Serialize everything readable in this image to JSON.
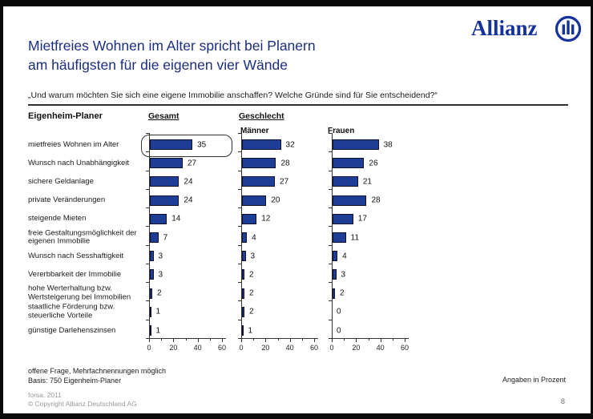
{
  "brand": {
    "logo_text": "Allianz",
    "logo_color": "#16339c"
  },
  "header": {
    "title_line1": "Mietfreies Wohnen im Alter spricht bei Planern",
    "title_line2": "am häufigsten für die eigenen vier Wände",
    "title_color": "#1c2e80",
    "question": "„Und warum möchten Sie sich eine eigene Immobilie anschaffen? Welche Gründe sind für Sie entscheidend?“"
  },
  "chart_data": {
    "type": "bar",
    "orientation": "horizontal",
    "group_label": "Eigenheim-Planer",
    "series_group_header": "Geschlecht",
    "categories": [
      "mietfreies Wohnen im Alter",
      "Wunsch nach Unabhängigkeit",
      "sichere Geldanlage",
      "private Veränderungen",
      "steigende Mieten",
      "freie Gestaltungsmöglichkeit der eigenen Immobilie",
      "Wunsch nach Sesshaftigkeit",
      "Vererbbarkeit der Immobilie",
      "hohe Werterhaltung bzw. Wertsteigerung bei Immobilien",
      "staatliche Förderung bzw. steuerliche Vorteile",
      "günstige Darlehenszinsen"
    ],
    "series": [
      {
        "name": "Gesamt",
        "values": [
          35,
          27,
          24,
          24,
          14,
          7,
          3,
          3,
          2,
          1,
          1
        ]
      },
      {
        "name": "Männer",
        "values": [
          32,
          28,
          27,
          20,
          12,
          4,
          3,
          2,
          2,
          2,
          1
        ]
      },
      {
        "name": "Frauen",
        "values": [
          38,
          26,
          21,
          28,
          17,
          11,
          4,
          3,
          2,
          0,
          0
        ]
      }
    ],
    "xlim": [
      0,
      60
    ],
    "x_major_ticks": [
      0,
      20,
      40,
      60
    ],
    "x_minor_ticks": [
      10,
      30,
      50
    ],
    "bar_color": "#1e3d94",
    "grid": false,
    "legend_position": "column-headers",
    "highlight": {
      "series": "Gesamt",
      "category": "mietfreies Wohnen im Alter",
      "value": 35
    }
  },
  "footer": {
    "note_line1": "offene Frage, Mehrfachnennungen möglich",
    "note_line2": "Basis: 750 Eigenheim-Planer",
    "unit_note": "Angaben in Prozent",
    "source": "forsa. 2011",
    "copyright": "© Copyright Allianz Deutschland AG",
    "page_number": "8"
  }
}
